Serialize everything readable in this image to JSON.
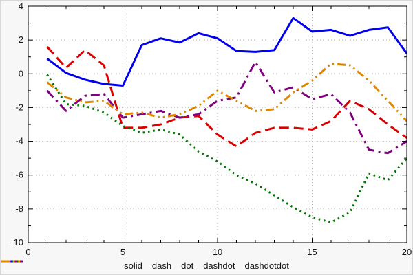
{
  "figure": {
    "background": "#f7f7f7",
    "plot_background": "#ffffff",
    "grid_color": "#b8b8b8",
    "frame_color": "#000000"
  },
  "chart_data": {
    "type": "line",
    "title": "",
    "xlabel": "",
    "ylabel": "",
    "xlim": [
      0,
      20
    ],
    "ylim": [
      -10,
      4
    ],
    "xticks": [
      0,
      5,
      10,
      15,
      20
    ],
    "yticks": [
      -10,
      -8,
      -6,
      -4,
      -2,
      0,
      2,
      4
    ],
    "grid": true,
    "legend_position": "bottom",
    "x": [
      1,
      2,
      3,
      4,
      5,
      6,
      7,
      8,
      9,
      10,
      11,
      12,
      13,
      14,
      15,
      16,
      17,
      18,
      19,
      20
    ],
    "series": [
      {
        "name": "solid",
        "color": "#0000ee",
        "dash": "solid",
        "values": [
          0.9,
          0.05,
          -0.35,
          -0.6,
          -0.7,
          1.7,
          2.1,
          1.85,
          2.4,
          2.1,
          1.35,
          1.3,
          1.4,
          3.3,
          2.5,
          2.6,
          2.25,
          2.6,
          2.75,
          1.2
        ]
      },
      {
        "name": "dash",
        "color": "#dd0000",
        "dash": "dash",
        "values": [
          1.6,
          0.35,
          1.4,
          0.5,
          -3.2,
          -3.2,
          -3.0,
          -2.6,
          -2.5,
          -3.6,
          -4.3,
          -3.5,
          -3.2,
          -3.2,
          -3.3,
          -2.8,
          -1.6,
          -2.1,
          -3.0,
          -3.8
        ]
      },
      {
        "name": "dot",
        "color": "#007700",
        "dash": "dot",
        "values": [
          -0.05,
          -1.8,
          -1.9,
          -2.3,
          -3.1,
          -3.5,
          -3.3,
          -3.6,
          -4.6,
          -5.2,
          -6.0,
          -6.5,
          -7.2,
          -7.9,
          -8.5,
          -8.8,
          -8.2,
          -5.9,
          -6.3,
          -5.0
        ]
      },
      {
        "name": "dashdot",
        "color": "#800080",
        "dash": "dashdot",
        "values": [
          -1.0,
          -2.2,
          -1.3,
          -1.2,
          -2.6,
          -2.4,
          -2.2,
          -2.6,
          -2.4,
          -1.6,
          -1.4,
          0.7,
          -1.1,
          -0.8,
          -1.5,
          -1.2,
          -2.3,
          -4.5,
          -4.7,
          -4.0
        ]
      },
      {
        "name": "dashdotdot",
        "color": "#dd8800",
        "dash": "dashdotdot",
        "values": [
          -0.5,
          -1.4,
          -1.7,
          -1.6,
          -2.4,
          -2.3,
          -2.6,
          -2.4,
          -1.9,
          -1.0,
          -1.6,
          -2.2,
          -2.1,
          -1.1,
          -0.4,
          0.6,
          0.5,
          -0.4,
          -1.6,
          -2.8
        ]
      }
    ]
  }
}
